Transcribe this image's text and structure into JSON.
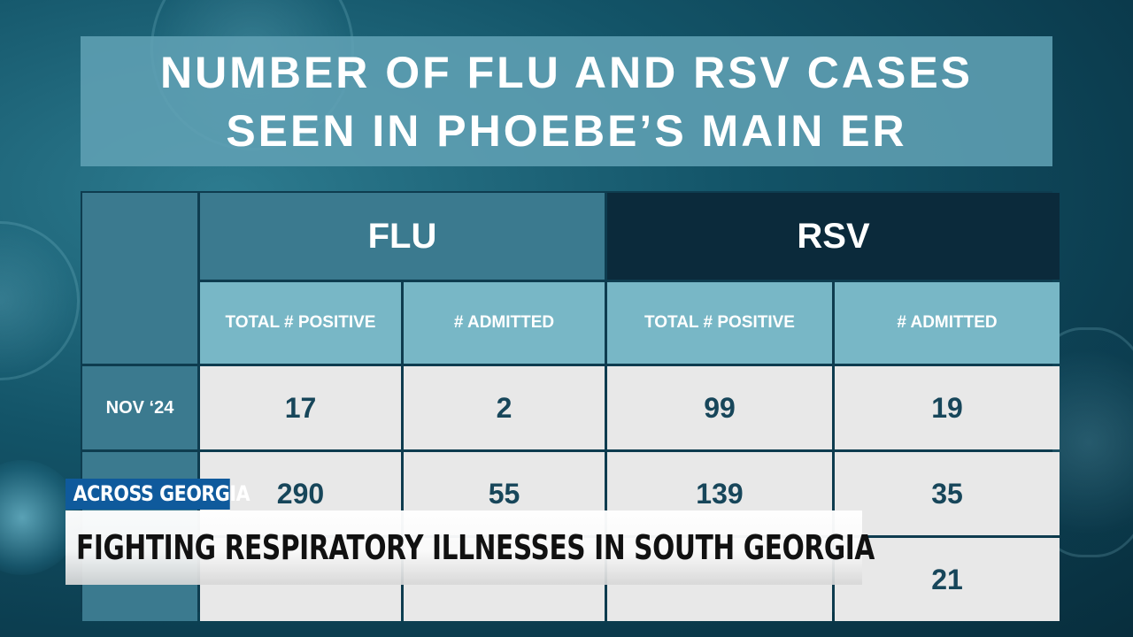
{
  "background": {
    "theme": "virus-particles",
    "colors": {
      "primary": "#135468",
      "dark": "#082e3d"
    }
  },
  "title": {
    "line1": "NUMBER OF FLU AND RSV CASES",
    "line2": "SEEN IN PHOEBE’S MAIN ER"
  },
  "table": {
    "groups": [
      {
        "label": "FLU",
        "color": "#3b7a8f"
      },
      {
        "label": "RSV",
        "color": "#0b2a3b"
      }
    ],
    "subheaders": [
      "TOTAL # POSITIVE",
      "# ADMITTED",
      "TOTAL # POSITIVE",
      "# ADMITTED"
    ],
    "rows": [
      {
        "month": "NOV ‘24",
        "flu_positive": "17",
        "flu_admitted": "2",
        "rsv_positive": "99",
        "rsv_admitted": "19"
      },
      {
        "month": "",
        "flu_positive": "290",
        "flu_admitted": "55",
        "rsv_positive": "139",
        "rsv_admitted": "35"
      },
      {
        "month": "",
        "flu_positive": "",
        "flu_admitted": "",
        "rsv_positive": "",
        "rsv_admitted": "21"
      }
    ]
  },
  "lower_third": {
    "tag": "ACROSS GEORGIA",
    "headline": "FIGHTING RESPIRATORY ILLNESSES IN SOUTH GEORGIA",
    "tag_color": "#0f5a9c"
  }
}
